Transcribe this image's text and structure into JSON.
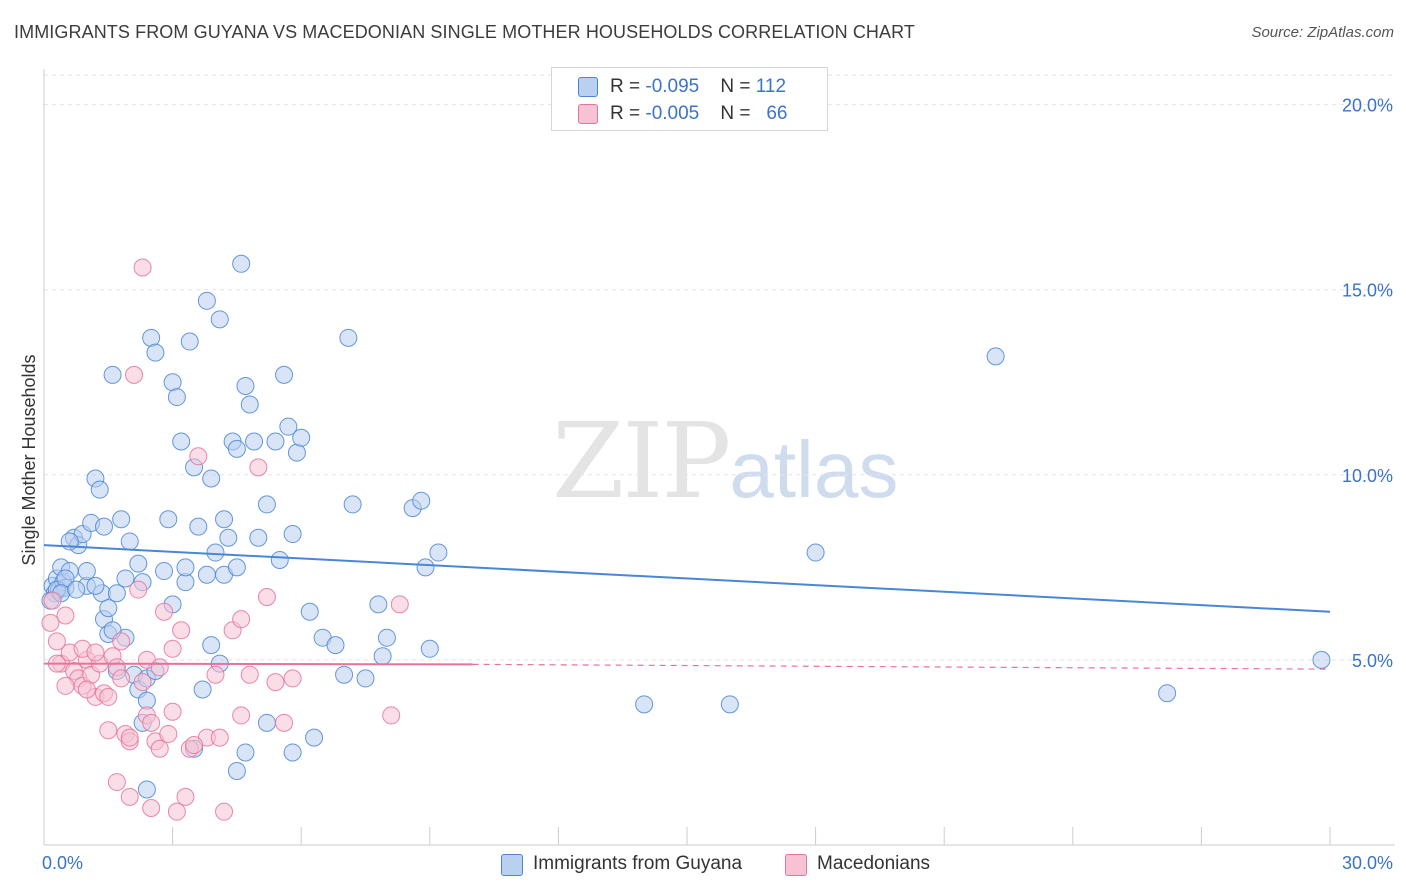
{
  "title": "IMMIGRANTS FROM GUYANA VS MACEDONIAN SINGLE MOTHER HOUSEHOLDS CORRELATION CHART",
  "source": "Source: ZipAtlas.com",
  "watermark": {
    "zip": "ZIP",
    "atlas": "atlas"
  },
  "colors": {
    "blue": "#4a86d8",
    "blue_fill": "#b9d0f0",
    "pink": "#e8729a",
    "pink_fill": "#f6c2d4",
    "axis_text": "#3b73c8"
  },
  "legend": {
    "rows": [
      {
        "r_label": "R = ",
        "r_value": "-0.095",
        "n_label": "N = ",
        "n_value": "112"
      },
      {
        "r_label": "R = ",
        "r_value": "-0.005",
        "n_label": "N = ",
        "n_value": "66"
      }
    ]
  },
  "bottom_legend": [
    "Immigrants from Guyana",
    "Macedonians"
  ],
  "chart_data": {
    "type": "scatter",
    "title": "IMMIGRANTS FROM GUYANA VS MACEDONIAN SINGLE MOTHER HOUSEHOLDS CORRELATION CHART",
    "xlabel": "",
    "ylabel": "Single Mother Households",
    "xlim": [
      0,
      30
    ],
    "ylim": [
      0,
      20.8
    ],
    "x_ticks_labeled": [
      "0.0%",
      "30.0%"
    ],
    "y_ticks": [
      5,
      10,
      15,
      20
    ],
    "y_tick_labels": [
      "5.0%",
      "10.0%",
      "15.0%",
      "20.0%"
    ],
    "grid": true,
    "legend_position": "top-center",
    "series": [
      {
        "name": "Immigrants from Guyana",
        "color": "#4a86d8",
        "r": -0.095,
        "n": 112,
        "trend": {
          "x": [
            0,
            30
          ],
          "y": [
            8.1,
            6.3
          ]
        },
        "points": [
          [
            0.2,
            7.0
          ],
          [
            0.25,
            6.8
          ],
          [
            0.3,
            7.2
          ],
          [
            0.35,
            6.9
          ],
          [
            0.4,
            7.5
          ],
          [
            0.45,
            7.1
          ],
          [
            0.5,
            6.95
          ],
          [
            0.6,
            7.4
          ],
          [
            0.7,
            8.3
          ],
          [
            0.8,
            8.1
          ],
          [
            0.9,
            8.4
          ],
          [
            1.0,
            7.0
          ],
          [
            1.1,
            8.7
          ],
          [
            1.2,
            9.9
          ],
          [
            1.3,
            9.6
          ],
          [
            1.35,
            6.8
          ],
          [
            1.4,
            6.1
          ],
          [
            1.5,
            5.7
          ],
          [
            1.6,
            12.7
          ],
          [
            1.7,
            6.8
          ],
          [
            1.8,
            8.8
          ],
          [
            1.9,
            7.2
          ],
          [
            2.0,
            8.2
          ],
          [
            2.1,
            4.6
          ],
          [
            2.2,
            4.2
          ],
          [
            2.3,
            3.3
          ],
          [
            2.4,
            3.9
          ],
          [
            2.5,
            13.7
          ],
          [
            2.6,
            13.3
          ],
          [
            2.8,
            7.4
          ],
          [
            2.9,
            8.8
          ],
          [
            3.0,
            12.5
          ],
          [
            3.1,
            12.1
          ],
          [
            3.2,
            10.9
          ],
          [
            3.3,
            7.1
          ],
          [
            3.4,
            13.6
          ],
          [
            3.5,
            10.2
          ],
          [
            3.6,
            8.6
          ],
          [
            3.7,
            4.2
          ],
          [
            3.8,
            14.7
          ],
          [
            3.9,
            9.9
          ],
          [
            4.0,
            7.9
          ],
          [
            4.1,
            14.2
          ],
          [
            4.2,
            8.8
          ],
          [
            4.3,
            8.3
          ],
          [
            4.4,
            10.9
          ],
          [
            4.5,
            10.7
          ],
          [
            4.6,
            15.7
          ],
          [
            4.7,
            12.4
          ],
          [
            4.8,
            11.9
          ],
          [
            4.9,
            10.9
          ],
          [
            5.0,
            8.3
          ],
          [
            5.2,
            9.2
          ],
          [
            5.4,
            10.9
          ],
          [
            5.5,
            7.7
          ],
          [
            5.6,
            12.7
          ],
          [
            5.7,
            11.3
          ],
          [
            5.8,
            8.4
          ],
          [
            5.9,
            10.6
          ],
          [
            6.0,
            11.0
          ],
          [
            6.2,
            6.3
          ],
          [
            6.5,
            5.6
          ],
          [
            6.8,
            5.4
          ],
          [
            7.1,
            13.7
          ],
          [
            7.2,
            9.2
          ],
          [
            7.5,
            4.5
          ],
          [
            7.8,
            6.5
          ],
          [
            7.9,
            5.1
          ],
          [
            8.0,
            5.6
          ],
          [
            8.6,
            9.1
          ],
          [
            8.8,
            9.3
          ],
          [
            8.9,
            7.5
          ],
          [
            9.0,
            5.3
          ],
          [
            9.2,
            7.9
          ],
          [
            1.5,
            6.4
          ],
          [
            1.7,
            4.7
          ],
          [
            1.9,
            5.6
          ],
          [
            2.4,
            4.5
          ],
          [
            0.3,
            6.9
          ],
          [
            0.5,
            7.2
          ],
          [
            0.6,
            8.2
          ],
          [
            1.0,
            7.4
          ],
          [
            1.4,
            8.6
          ],
          [
            2.2,
            7.6
          ],
          [
            2.6,
            4.7
          ],
          [
            3.0,
            6.5
          ],
          [
            3.5,
            2.6
          ],
          [
            3.9,
            5.4
          ],
          [
            4.1,
            4.9
          ],
          [
            4.7,
            2.5
          ],
          [
            5.2,
            3.3
          ],
          [
            5.8,
            2.5
          ],
          [
            6.3,
            2.9
          ],
          [
            7.0,
            4.6
          ],
          [
            3.8,
            7.3
          ],
          [
            4.5,
            2.0
          ],
          [
            2.4,
            1.5
          ],
          [
            4.2,
            7.3
          ],
          [
            4.5,
            7.5
          ],
          [
            1.2,
            7.0
          ],
          [
            14.0,
            3.8
          ],
          [
            16.0,
            3.8
          ],
          [
            18.0,
            7.9
          ],
          [
            22.2,
            13.2
          ],
          [
            26.2,
            4.1
          ],
          [
            29.8,
            5.0
          ],
          [
            0.15,
            6.6
          ],
          [
            0.4,
            6.8
          ],
          [
            0.75,
            6.9
          ],
          [
            1.6,
            5.8
          ],
          [
            2.3,
            7.1
          ],
          [
            3.3,
            7.5
          ]
        ]
      },
      {
        "name": "Macedonians",
        "color": "#e8729a",
        "r": -0.005,
        "n": 66,
        "trend": {
          "x": [
            0,
            10
          ],
          "y": [
            4.9,
            4.88
          ]
        },
        "trend_extension": {
          "x": [
            10,
            30
          ],
          "y": [
            4.88,
            4.75
          ]
        },
        "points": [
          [
            0.2,
            6.6
          ],
          [
            0.3,
            5.5
          ],
          [
            0.4,
            4.9
          ],
          [
            0.5,
            6.2
          ],
          [
            0.6,
            5.2
          ],
          [
            0.7,
            4.7
          ],
          [
            0.8,
            4.5
          ],
          [
            0.9,
            4.3
          ],
          [
            1.0,
            5.0
          ],
          [
            1.1,
            4.6
          ],
          [
            1.2,
            4.0
          ],
          [
            1.3,
            4.9
          ],
          [
            1.4,
            4.1
          ],
          [
            1.5,
            4.0
          ],
          [
            1.6,
            5.1
          ],
          [
            1.7,
            4.8
          ],
          [
            1.8,
            4.5
          ],
          [
            1.9,
            3.0
          ],
          [
            2.0,
            2.8
          ],
          [
            2.1,
            12.7
          ],
          [
            2.2,
            6.9
          ],
          [
            2.3,
            4.4
          ],
          [
            2.4,
            3.5
          ],
          [
            2.5,
            3.3
          ],
          [
            2.6,
            2.8
          ],
          [
            2.7,
            2.6
          ],
          [
            2.8,
            6.3
          ],
          [
            2.9,
            3.0
          ],
          [
            3.0,
            5.3
          ],
          [
            3.2,
            5.8
          ],
          [
            3.3,
            1.3
          ],
          [
            3.4,
            2.6
          ],
          [
            3.6,
            10.5
          ],
          [
            3.8,
            2.9
          ],
          [
            4.0,
            4.6
          ],
          [
            4.2,
            0.9
          ],
          [
            4.4,
            5.8
          ],
          [
            4.6,
            6.1
          ],
          [
            4.8,
            4.6
          ],
          [
            5.0,
            10.2
          ],
          [
            5.2,
            6.7
          ],
          [
            5.4,
            4.4
          ],
          [
            5.6,
            3.3
          ],
          [
            5.8,
            4.5
          ],
          [
            2.3,
            15.6
          ],
          [
            0.15,
            6.0
          ],
          [
            0.5,
            4.3
          ],
          [
            0.9,
            5.3
          ],
          [
            1.2,
            5.2
          ],
          [
            1.5,
            3.1
          ],
          [
            1.7,
            1.7
          ],
          [
            2.0,
            2.9
          ],
          [
            2.4,
            5.0
          ],
          [
            2.7,
            4.8
          ],
          [
            3.0,
            3.6
          ],
          [
            3.5,
            2.7
          ],
          [
            4.1,
            2.9
          ],
          [
            4.6,
            3.5
          ],
          [
            8.1,
            3.5
          ],
          [
            8.3,
            6.5
          ],
          [
            0.3,
            4.9
          ],
          [
            1.0,
            4.2
          ],
          [
            2.0,
            1.3
          ],
          [
            2.5,
            1.0
          ],
          [
            3.1,
            0.9
          ],
          [
            1.8,
            5.5
          ]
        ]
      }
    ]
  }
}
